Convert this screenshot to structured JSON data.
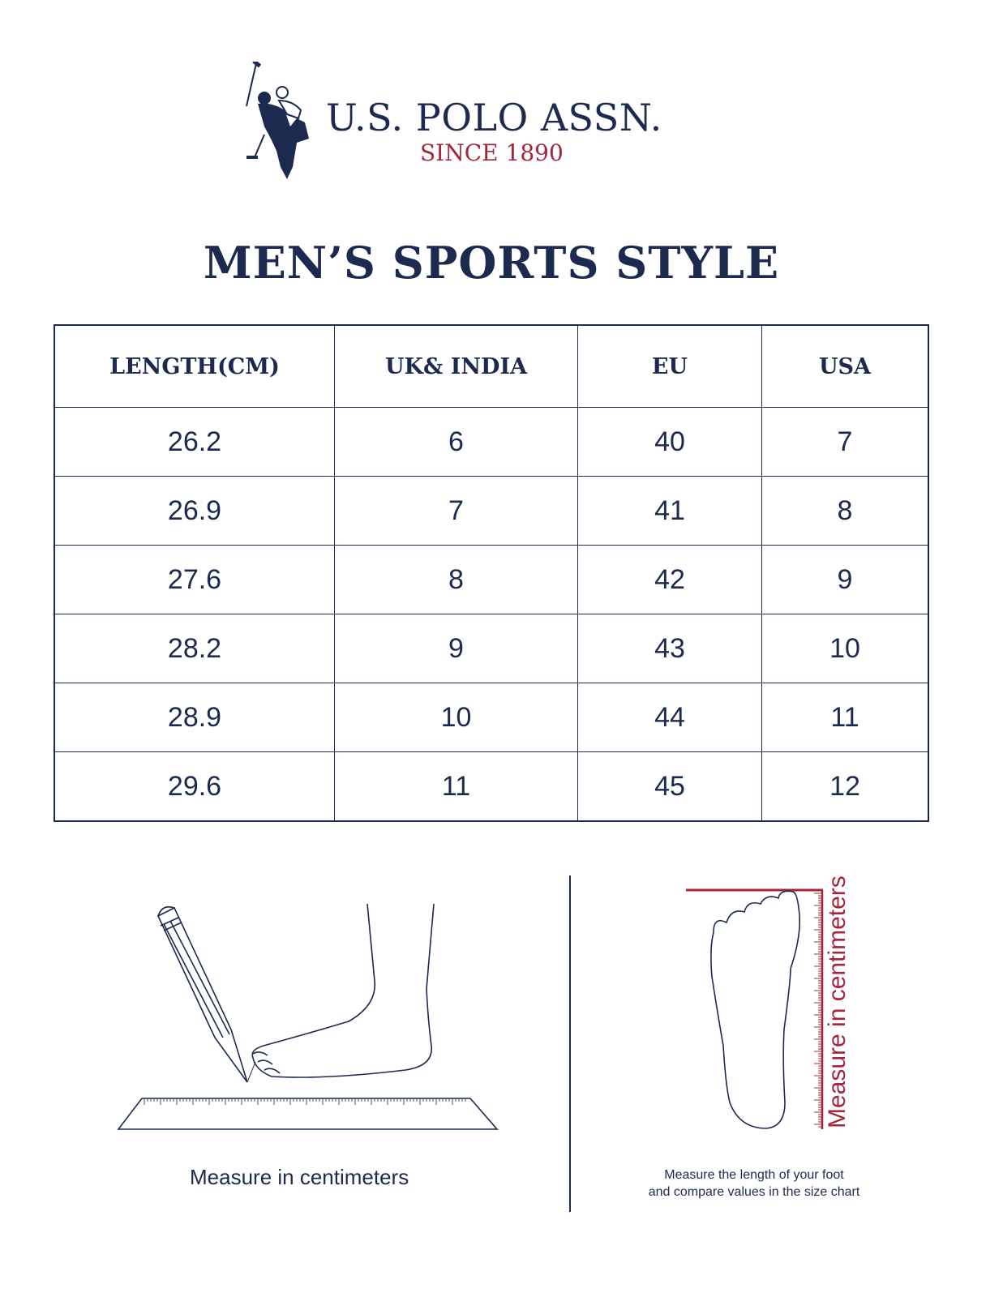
{
  "brand": {
    "name": "U.S. POLO ASSN.",
    "tagline": "SINCE 1890",
    "logo_icon": "polo-player-icon"
  },
  "title": "MEN’S SPORTS STYLE",
  "colors": {
    "navy": "#1c2a4f",
    "red": "#a3273a"
  },
  "table": {
    "headers": [
      "LENGTH(CM)",
      "UK& INDIA",
      "EU",
      "USA"
    ],
    "rows": [
      [
        "26.2",
        "6",
        "40",
        "7"
      ],
      [
        "26.9",
        "7",
        "41",
        "8"
      ],
      [
        "27.6",
        "8",
        "42",
        "9"
      ],
      [
        "28.2",
        "9",
        "43",
        "10"
      ],
      [
        "28.9",
        "10",
        "44",
        "11"
      ],
      [
        "29.6",
        "11",
        "45",
        "12"
      ]
    ]
  },
  "instructions": {
    "left_caption": "Measure in centimeters",
    "right_vertical_label": "Measure in centimeters",
    "right_caption_line1": "Measure the length of your foot",
    "right_caption_line2": "and compare values in the size chart"
  }
}
